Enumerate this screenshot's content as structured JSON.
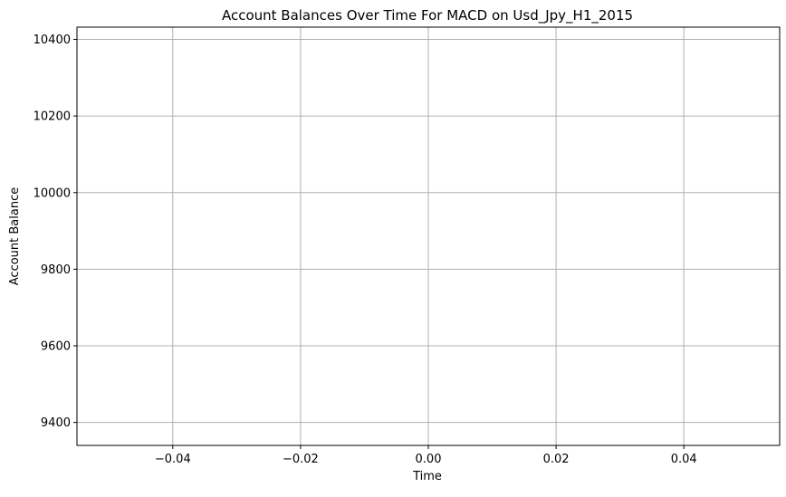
{
  "chart_data": {
    "type": "line",
    "title": "Account Balances Over Time For MACD on Usd_Jpy_H1_2015",
    "xlabel": "Time",
    "ylabel": "Account Balance",
    "xlim": [
      -0.055,
      0.055
    ],
    "ylim": [
      9340,
      10432
    ],
    "xticks": [
      {
        "value": -0.04,
        "label": "−0.04"
      },
      {
        "value": -0.02,
        "label": "−0.02"
      },
      {
        "value": 0.0,
        "label": "0.00"
      },
      {
        "value": 0.02,
        "label": "0.02"
      },
      {
        "value": 0.04,
        "label": "0.04"
      }
    ],
    "yticks": [
      {
        "value": 9400,
        "label": "9400"
      },
      {
        "value": 9600,
        "label": "9600"
      },
      {
        "value": 9800,
        "label": "9800"
      },
      {
        "value": 10000,
        "label": "10000"
      },
      {
        "value": 10200,
        "label": "10200"
      },
      {
        "value": 10400,
        "label": "10400"
      }
    ],
    "grid": true,
    "series": [
      {
        "values": [],
        "x": [],
        "color": "#1f77b4"
      }
    ],
    "colors": {
      "grid": "#b0b0b0",
      "axes": "#000000"
    }
  }
}
